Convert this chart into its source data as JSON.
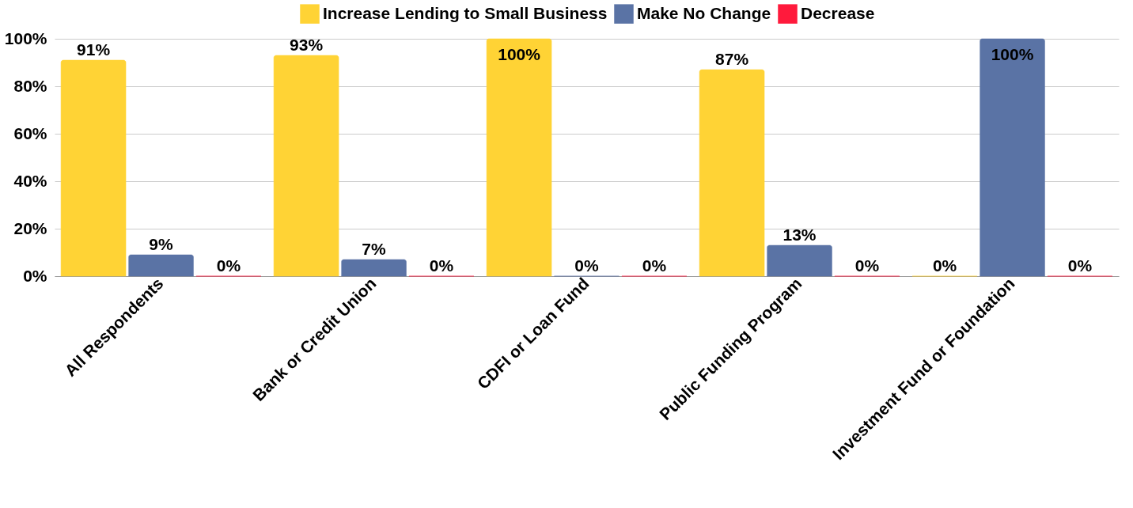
{
  "chart_data": {
    "type": "bar",
    "categories": [
      "All Respondents",
      "Bank or Credit Union",
      "CDFI or Loan Fund",
      "Public Funding Program",
      "Investment Fund or Foundation"
    ],
    "series": [
      {
        "name": "Increase Lending to Small Business",
        "color": "#ffd335",
        "values": [
          91,
          93,
          100,
          87,
          0
        ],
        "value_labels": [
          "91%",
          "93%",
          "100%",
          "87%",
          "0%"
        ]
      },
      {
        "name": "Make No Change",
        "color": "#5a73a5",
        "values": [
          9,
          7,
          0,
          13,
          100
        ],
        "value_labels": [
          "9%",
          "7%",
          "0%",
          "13%",
          "100%"
        ]
      },
      {
        "name": "Decrease",
        "color": "#ff1a3c",
        "values": [
          0,
          0,
          0,
          0,
          0
        ],
        "value_labels": [
          "0%",
          "0%",
          "0%",
          "0%",
          "0%"
        ]
      }
    ],
    "ylim": [
      0,
      100
    ],
    "yticks": [
      {
        "value": 0,
        "label": "0%"
      },
      {
        "value": 20,
        "label": "20%"
      },
      {
        "value": 40,
        "label": "40%"
      },
      {
        "value": 60,
        "label": "60%"
      },
      {
        "value": 80,
        "label": "80%"
      },
      {
        "value": 100,
        "label": "100%"
      }
    ],
    "grid": "y",
    "legend": "top"
  }
}
